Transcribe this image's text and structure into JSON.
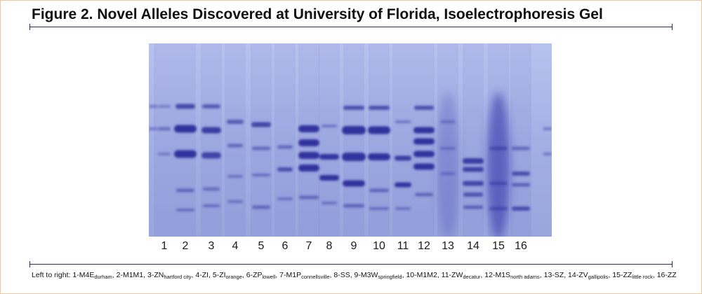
{
  "figure": {
    "title": "Figure 2. Novel Alleles Discovered at University of Florida, Isoelectrophoresis Gel",
    "caption_lead": "Left to right: ",
    "lanes": [
      {
        "number": "1",
        "prefix": "1-M",
        "parts": [
          [
            "4",
            ""
          ],
          [
            "E",
            ""
          ],
          [
            "",
            "durham"
          ]
        ]
      },
      {
        "number": "2",
        "prefix": "2-M",
        "parts": [
          [
            "1",
            ""
          ],
          [
            "M",
            ""
          ],
          [
            "1",
            ""
          ]
        ]
      },
      {
        "number": "3",
        "prefix": "3-ZN",
        "parts": [
          [
            "",
            "hartford city"
          ]
        ]
      },
      {
        "number": "4",
        "prefix": "4-ZI",
        "parts": []
      },
      {
        "number": "5",
        "prefix": "5-ZI",
        "parts": [
          [
            "",
            "orange"
          ]
        ]
      },
      {
        "number": "6",
        "prefix": "6-ZP",
        "parts": [
          [
            "",
            "lowell"
          ]
        ]
      },
      {
        "number": "7",
        "prefix": "7-M",
        "parts": [
          [
            "1",
            ""
          ],
          [
            "P",
            ""
          ],
          [
            "",
            "connellsville"
          ]
        ]
      },
      {
        "number": "8",
        "prefix": "8-SS",
        "parts": []
      },
      {
        "number": "9",
        "prefix": "9-M",
        "parts": [
          [
            "3",
            ""
          ],
          [
            "W",
            ""
          ],
          [
            "",
            "springfield"
          ]
        ]
      },
      {
        "number": "10",
        "prefix": "10-M",
        "parts": [
          [
            "1",
            ""
          ],
          [
            "M",
            ""
          ],
          [
            "2",
            ""
          ]
        ]
      },
      {
        "number": "11",
        "prefix": "11-ZW",
        "parts": [
          [
            "",
            "decatur"
          ]
        ]
      },
      {
        "number": "12",
        "prefix": "12-M",
        "parts": [
          [
            "1",
            ""
          ],
          [
            "S",
            ""
          ],
          [
            "",
            "north adams"
          ]
        ]
      },
      {
        "number": "13",
        "prefix": "13-SZ",
        "parts": []
      },
      {
        "number": "14",
        "prefix": "14-ZV",
        "parts": [
          [
            "",
            "gallipolis"
          ]
        ]
      },
      {
        "number": "15",
        "prefix": "15-ZZ",
        "parts": [
          [
            "",
            "little rock"
          ]
        ]
      },
      {
        "number": "16",
        "prefix": "16-ZZ",
        "parts": []
      }
    ]
  },
  "colors": {
    "gel_background": "#a6b3e6",
    "band": "#2a2a9a",
    "rule": "#1f2d5c"
  }
}
